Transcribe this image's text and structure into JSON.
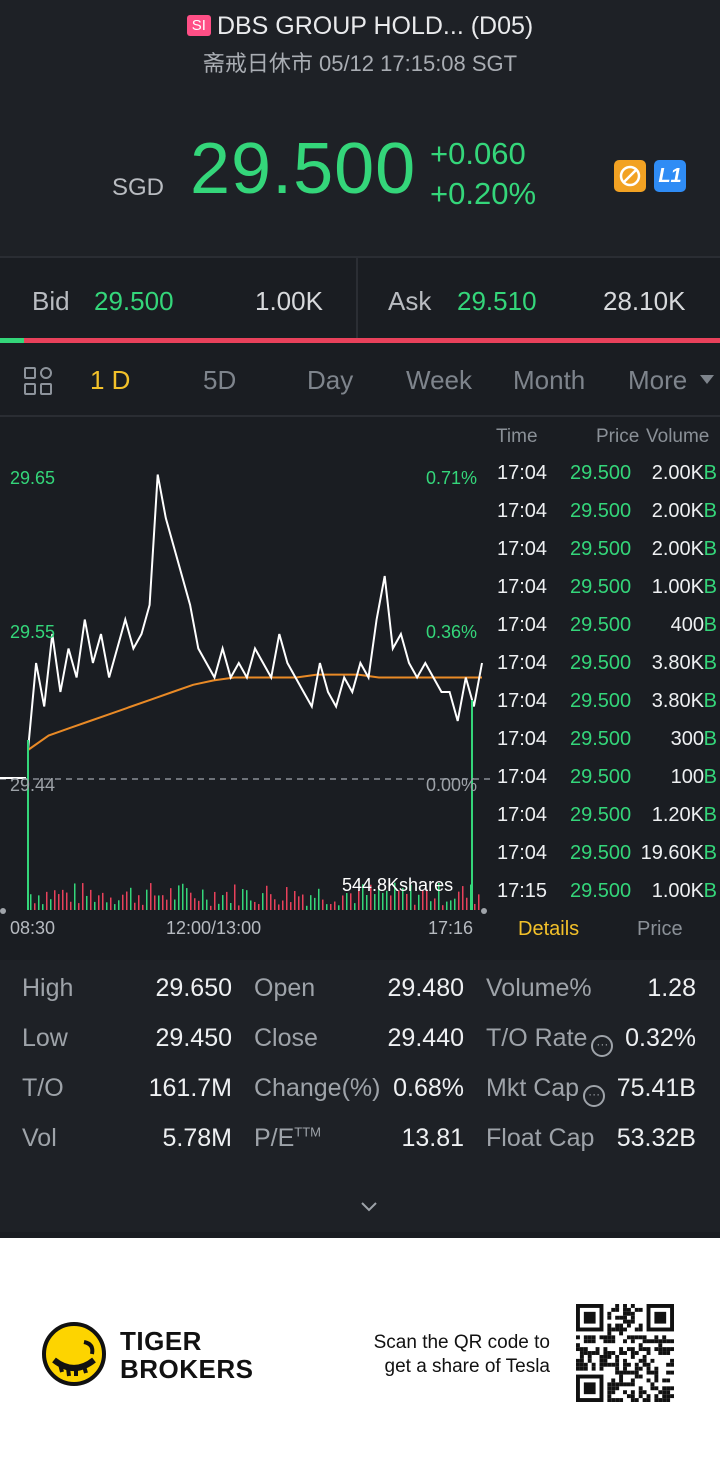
{
  "header": {
    "badge": "SI",
    "title": "DBS GROUP HOLD... (D05)",
    "subtitle": "斋戒日休市 05/12 17:15:08 SGT",
    "currency": "SGD",
    "price": "29.500",
    "change_abs": "+0.060",
    "change_pct": "+0.20%",
    "level_badge": "L1",
    "up_color": "#34d67a"
  },
  "bidask": {
    "bid_label": "Bid",
    "bid_price": "29.500",
    "bid_size": "1.00K",
    "ask_label": "Ask",
    "ask_price": "29.510",
    "ask_size": "28.10K",
    "bid_ratio": 0.033
  },
  "tabs": [
    "1 D",
    "5D",
    "Day",
    "Week",
    "Month",
    "More"
  ],
  "active_tab": "1 D",
  "chart": {
    "y_labels": [
      "29.65",
      "29.55",
      "29.44"
    ],
    "pct_labels": [
      "0.71%",
      "0.36%",
      "0.00%"
    ],
    "volume_label": "544.8Kshares",
    "x_labels": [
      "08:30",
      "12:00/13:00",
      "17:16"
    ]
  },
  "chart_data": {
    "type": "line",
    "series": [
      {
        "values": [
          29.46,
          29.52,
          29.49,
          29.54,
          29.5,
          29.53,
          29.51,
          29.55,
          29.52,
          29.54,
          29.51,
          29.53,
          29.55,
          29.53,
          29.54,
          29.56,
          29.65,
          29.62,
          29.6,
          29.58,
          29.56,
          29.53,
          29.52,
          29.51,
          29.53,
          29.51,
          29.52,
          29.51,
          29.53,
          29.52,
          29.51,
          29.54,
          29.52,
          29.51,
          29.5,
          29.49,
          29.52,
          29.5,
          29.49,
          29.51,
          29.5,
          29.52,
          29.51,
          29.55,
          29.58,
          29.53,
          29.54,
          29.52,
          29.51,
          29.52,
          29.51,
          29.5,
          29.5,
          29.48,
          29.51,
          29.49,
          29.52
        ]
      },
      {
        "values": [
          29.46,
          29.47,
          29.475,
          29.48,
          29.485,
          29.49,
          29.495,
          29.5,
          29.505,
          29.508,
          29.51,
          29.51,
          29.51,
          29.51,
          29.512,
          29.512,
          29.512,
          29.51,
          29.51,
          29.51,
          29.51,
          29.51,
          29.51
        ]
      }
    ],
    "ylim": [
      29.44,
      29.66
    ],
    "y_ticks": [
      "29.65",
      "29.55",
      "29.44"
    ],
    "x_ticks": [
      "08:30",
      "12:00/13:00",
      "17:16"
    ]
  },
  "trades": {
    "headers": [
      "Time",
      "Price",
      "Volume"
    ],
    "rows": [
      {
        "time": "17:04",
        "price": "29.500",
        "vol": "2.00K",
        "side": "B"
      },
      {
        "time": "17:04",
        "price": "29.500",
        "vol": "2.00K",
        "side": "B"
      },
      {
        "time": "17:04",
        "price": "29.500",
        "vol": "2.00K",
        "side": "B"
      },
      {
        "time": "17:04",
        "price": "29.500",
        "vol": "1.00K",
        "side": "B"
      },
      {
        "time": "17:04",
        "price": "29.500",
        "vol": "400",
        "side": "B"
      },
      {
        "time": "17:04",
        "price": "29.500",
        "vol": "3.80K",
        "side": "B"
      },
      {
        "time": "17:04",
        "price": "29.500",
        "vol": "3.80K",
        "side": "B"
      },
      {
        "time": "17:04",
        "price": "29.500",
        "vol": "300",
        "side": "B"
      },
      {
        "time": "17:04",
        "price": "29.500",
        "vol": "100",
        "side": "B"
      },
      {
        "time": "17:04",
        "price": "29.500",
        "vol": "1.20K",
        "side": "B"
      },
      {
        "time": "17:04",
        "price": "29.500",
        "vol": "19.60K",
        "side": "B"
      },
      {
        "time": "17:15",
        "price": "29.500",
        "vol": "1.00K",
        "side": "B"
      }
    ],
    "tab_details": "Details",
    "tab_price": "Price"
  },
  "stats": {
    "high_label": "High",
    "high": "29.650",
    "low_label": "Low",
    "low": "29.450",
    "to_label": "T/O",
    "to": "161.7M",
    "vol_label": "Vol",
    "vol": "5.78M",
    "open_label": "Open",
    "open": "29.480",
    "close_label": "Close",
    "close": "29.440",
    "chg_label": "Change(%)",
    "chg": "0.68%",
    "pe_label": "P/E",
    "pe_sup": "TTM",
    "pe": "13.81",
    "volpct_label": "Volume%",
    "volpct": "1.28",
    "torate_label": "T/O Rate",
    "torate": "0.32%",
    "mktcap_label": "Mkt Cap",
    "mktcap": "75.41B",
    "floatcap_label": "Float Cap",
    "floatcap": "53.32B"
  },
  "footer": {
    "brand_line1": "TIGER",
    "brand_line2": "BROKERS",
    "scan_line1": "Scan the QR code to",
    "scan_line2": "get a share of Tesla"
  }
}
